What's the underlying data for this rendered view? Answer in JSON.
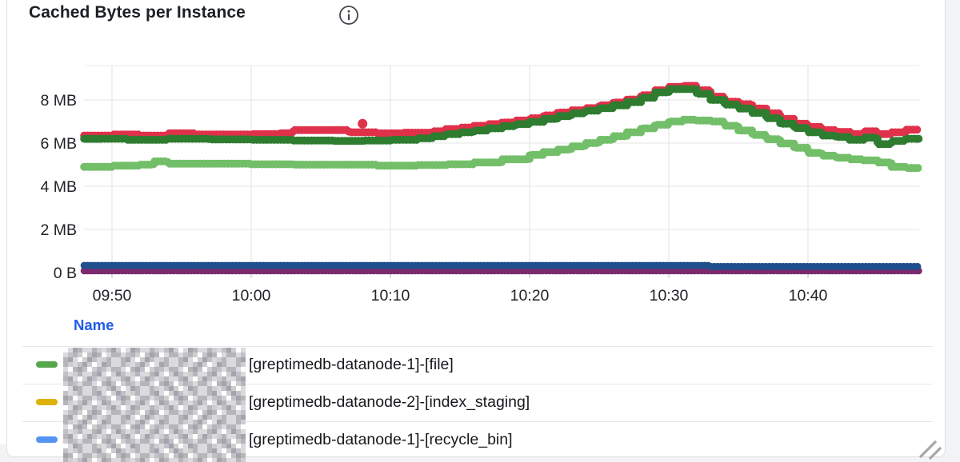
{
  "panel": {
    "title": "Cached Bytes per Instance",
    "info_icon": "info-circle"
  },
  "chart_data": {
    "type": "line",
    "style": "stepped-dotted-points",
    "title": "Cached Bytes per Instance",
    "y_unit": "MB",
    "x_unit": "minutes_after_09:00",
    "ylim": [
      0,
      9.2
    ],
    "x_range_minutes": [
      48,
      108
    ],
    "grid": true,
    "legend_position": "bottom-table",
    "y_ticks": [
      {
        "v": 8,
        "label": "8 MB"
      },
      {
        "v": 6,
        "label": "6 MB"
      },
      {
        "v": 4,
        "label": "4 MB"
      },
      {
        "v": 2,
        "label": "2 MB"
      },
      {
        "v": 0,
        "label": "0 B"
      }
    ],
    "x_ticks": [
      {
        "t": 50,
        "label": "09:50"
      },
      {
        "t": 60,
        "label": "10:00"
      },
      {
        "t": 70,
        "label": "10:10"
      },
      {
        "t": 80,
        "label": "10:20"
      },
      {
        "t": 90,
        "label": "10:30"
      },
      {
        "t": 100,
        "label": "10:40"
      }
    ],
    "series": [
      {
        "name": "purple",
        "color": "#7c2a70",
        "width": 9,
        "points": [
          [
            48,
            0.08
          ],
          [
            108,
            0.08
          ]
        ]
      },
      {
        "name": "dark-blue",
        "color": "#1f4f8c",
        "width": 9,
        "points": [
          [
            48,
            0.33
          ],
          [
            92,
            0.33
          ],
          [
            93,
            0.28
          ],
          [
            108,
            0.28
          ]
        ]
      },
      {
        "name": "light-green",
        "color": "#73bf69",
        "width": 10,
        "points": [
          [
            48,
            4.9
          ],
          [
            50,
            4.95
          ],
          [
            52,
            5.0
          ],
          [
            53,
            5.15
          ],
          [
            54,
            5.05
          ],
          [
            57,
            5.05
          ],
          [
            60,
            5.02
          ],
          [
            63,
            5.0
          ],
          [
            66,
            5.0
          ],
          [
            69,
            4.95
          ],
          [
            72,
            4.98
          ],
          [
            74,
            5.02
          ],
          [
            76,
            5.1
          ],
          [
            78,
            5.25
          ],
          [
            80,
            5.45
          ],
          [
            81,
            5.58
          ],
          [
            82,
            5.7
          ],
          [
            83,
            5.85
          ],
          [
            84,
            6.0
          ],
          [
            85,
            6.15
          ],
          [
            86,
            6.32
          ],
          [
            87,
            6.5
          ],
          [
            88,
            6.68
          ],
          [
            89,
            6.85
          ],
          [
            90,
            7.0
          ],
          [
            91,
            7.08
          ],
          [
            92,
            7.05
          ],
          [
            93,
            7.0
          ],
          [
            94,
            6.8
          ],
          [
            95,
            6.58
          ],
          [
            96,
            6.38
          ],
          [
            97,
            6.18
          ],
          [
            98,
            5.98
          ],
          [
            99,
            5.78
          ],
          [
            100,
            5.55
          ],
          [
            101,
            5.42
          ],
          [
            102,
            5.32
          ],
          [
            103,
            5.25
          ],
          [
            104,
            5.2
          ],
          [
            105,
            5.1
          ],
          [
            106,
            4.9
          ],
          [
            107,
            4.85
          ],
          [
            108,
            4.85
          ]
        ]
      },
      {
        "name": "red",
        "color": "#e0314b",
        "width": 10,
        "points": [
          [
            48,
            6.35
          ],
          [
            50,
            6.4
          ],
          [
            52,
            6.35
          ],
          [
            54,
            6.45
          ],
          [
            56,
            6.4
          ],
          [
            58,
            6.4
          ],
          [
            60,
            6.42
          ],
          [
            62,
            6.45
          ],
          [
            63,
            6.6
          ],
          [
            66,
            6.6
          ],
          [
            67,
            6.5
          ],
          [
            69,
            6.45
          ],
          [
            71,
            6.48
          ],
          [
            73,
            6.55
          ],
          [
            74,
            6.65
          ],
          [
            75,
            6.72
          ],
          [
            76,
            6.8
          ],
          [
            77,
            6.88
          ],
          [
            78,
            6.95
          ],
          [
            79,
            7.05
          ],
          [
            80,
            7.15
          ],
          [
            81,
            7.28
          ],
          [
            82,
            7.42
          ],
          [
            83,
            7.52
          ],
          [
            84,
            7.62
          ],
          [
            85,
            7.75
          ],
          [
            86,
            7.88
          ],
          [
            87,
            8.02
          ],
          [
            88,
            8.22
          ],
          [
            89,
            8.45
          ],
          [
            90,
            8.6
          ],
          [
            91,
            8.65
          ],
          [
            92,
            8.45
          ],
          [
            93,
            8.15
          ],
          [
            94,
            7.92
          ],
          [
            95,
            7.8
          ],
          [
            96,
            7.6
          ],
          [
            97,
            7.38
          ],
          [
            98,
            7.12
          ],
          [
            99,
            6.9
          ],
          [
            100,
            6.75
          ],
          [
            101,
            6.6
          ],
          [
            102,
            6.52
          ],
          [
            103,
            6.42
          ],
          [
            104,
            6.55
          ],
          [
            105,
            6.42
          ],
          [
            106,
            6.5
          ],
          [
            107,
            6.62
          ],
          [
            108,
            6.65
          ]
        ]
      },
      {
        "name": "dark-green",
        "color": "#2d7c2f",
        "width": 10,
        "points": [
          [
            48,
            6.2
          ],
          [
            51,
            6.15
          ],
          [
            54,
            6.2
          ],
          [
            57,
            6.17
          ],
          [
            60,
            6.15
          ],
          [
            63,
            6.12
          ],
          [
            66,
            6.1
          ],
          [
            68,
            6.12
          ],
          [
            70,
            6.15
          ],
          [
            72,
            6.22
          ],
          [
            73,
            6.32
          ],
          [
            74,
            6.42
          ],
          [
            75,
            6.5
          ],
          [
            76,
            6.58
          ],
          [
            77,
            6.68
          ],
          [
            78,
            6.78
          ],
          [
            79,
            6.88
          ],
          [
            80,
            6.98
          ],
          [
            81,
            7.12
          ],
          [
            82,
            7.25
          ],
          [
            83,
            7.38
          ],
          [
            84,
            7.5
          ],
          [
            85,
            7.62
          ],
          [
            86,
            7.75
          ],
          [
            87,
            7.9
          ],
          [
            88,
            8.1
          ],
          [
            89,
            8.35
          ],
          [
            90,
            8.5
          ],
          [
            91,
            8.5
          ],
          [
            92,
            8.28
          ],
          [
            93,
            8.0
          ],
          [
            94,
            7.78
          ],
          [
            95,
            7.6
          ],
          [
            96,
            7.4
          ],
          [
            97,
            7.15
          ],
          [
            98,
            6.9
          ],
          [
            99,
            6.7
          ],
          [
            100,
            6.5
          ],
          [
            101,
            6.35
          ],
          [
            102,
            6.28
          ],
          [
            103,
            6.15
          ],
          [
            104,
            6.25
          ],
          [
            105,
            5.95
          ],
          [
            106,
            6.1
          ],
          [
            107,
            6.2
          ],
          [
            108,
            6.22
          ]
        ]
      }
    ],
    "outliers": [
      {
        "series": "red",
        "t": 68,
        "v": 6.9,
        "color": "#e0314b",
        "r": 6
      }
    ]
  },
  "legend": {
    "header": "Name",
    "rows": [
      {
        "color": "#56a64b",
        "redacted_prefix": true,
        "label": "[greptimedb-datanode-1]-[file]"
      },
      {
        "color": "#ddb106",
        "redacted_prefix": true,
        "label": "[greptimedb-datanode-2]-[index_staging]"
      },
      {
        "color": "#5794f2",
        "redacted_prefix": true,
        "label": "[greptimedb-datanode-1]-[recycle_bin]"
      }
    ]
  }
}
